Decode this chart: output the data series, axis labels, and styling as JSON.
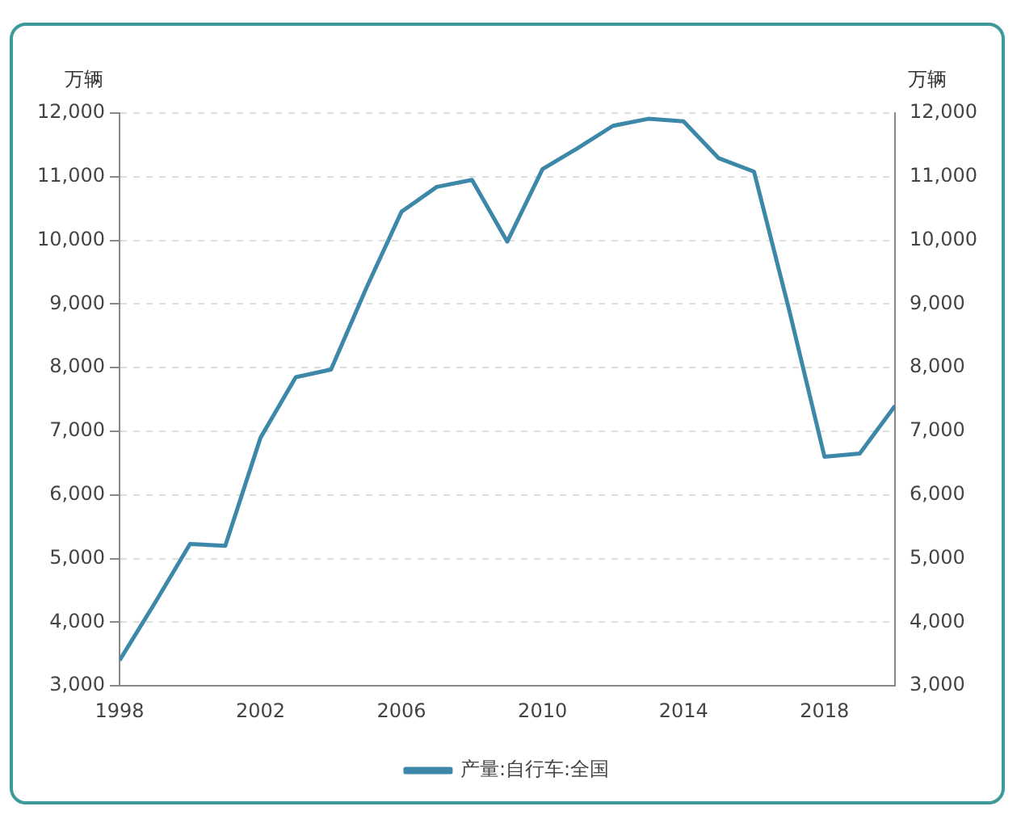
{
  "chart_data": {
    "type": "line",
    "ylabel": "万辆",
    "y2label": "万辆",
    "x": [
      1998,
      1999,
      2000,
      2001,
      2002,
      2003,
      2004,
      2005,
      2006,
      2007,
      2008,
      2009,
      2010,
      2011,
      2012,
      2013,
      2014,
      2015,
      2016,
      2017,
      2018,
      2019,
      2020
    ],
    "series": [
      {
        "name": "产量:自行车:全国",
        "color": "#3d88a8",
        "values": [
          3400,
          4300,
          5230,
          5200,
          6900,
          7850,
          7970,
          9250,
          10450,
          10840,
          10950,
          9980,
          11120,
          11450,
          11800,
          11910,
          11870,
          11290,
          11080,
          8900,
          6600,
          6650,
          7400
        ]
      }
    ],
    "xlim": [
      1998,
      2020
    ],
    "xticks": [
      1998,
      2002,
      2006,
      2010,
      2014,
      2018
    ],
    "ylim": [
      3000,
      12000
    ],
    "yticks": [
      {
        "value": 3000,
        "label": "3,000"
      },
      {
        "value": 4000,
        "label": "4,000"
      },
      {
        "value": 5000,
        "label": "5,000"
      },
      {
        "value": 6000,
        "label": "6,000"
      },
      {
        "value": 7000,
        "label": "7,000"
      },
      {
        "value": 8000,
        "label": "8,000"
      },
      {
        "value": 9000,
        "label": "9,000"
      },
      {
        "value": 10000,
        "label": "10,000"
      },
      {
        "value": 11000,
        "label": "11,000"
      },
      {
        "value": 12000,
        "label": "12,000"
      }
    ],
    "y2lim": [
      3000,
      12000
    ],
    "y2ticks": [
      {
        "value": 3000,
        "label": "3,000"
      },
      {
        "value": 4000,
        "label": "4,000"
      },
      {
        "value": 5000,
        "label": "5,000"
      },
      {
        "value": 6000,
        "label": "6,000"
      },
      {
        "value": 7000,
        "label": "7,000"
      },
      {
        "value": 8000,
        "label": "8,000"
      },
      {
        "value": 9000,
        "label": "9,000"
      },
      {
        "value": 10000,
        "label": "10,000"
      },
      {
        "value": 11000,
        "label": "11,000"
      },
      {
        "value": 12000,
        "label": "12,000"
      }
    ],
    "grid": "y",
    "legend": "bottom",
    "marker": "none",
    "line_style": "solid"
  }
}
